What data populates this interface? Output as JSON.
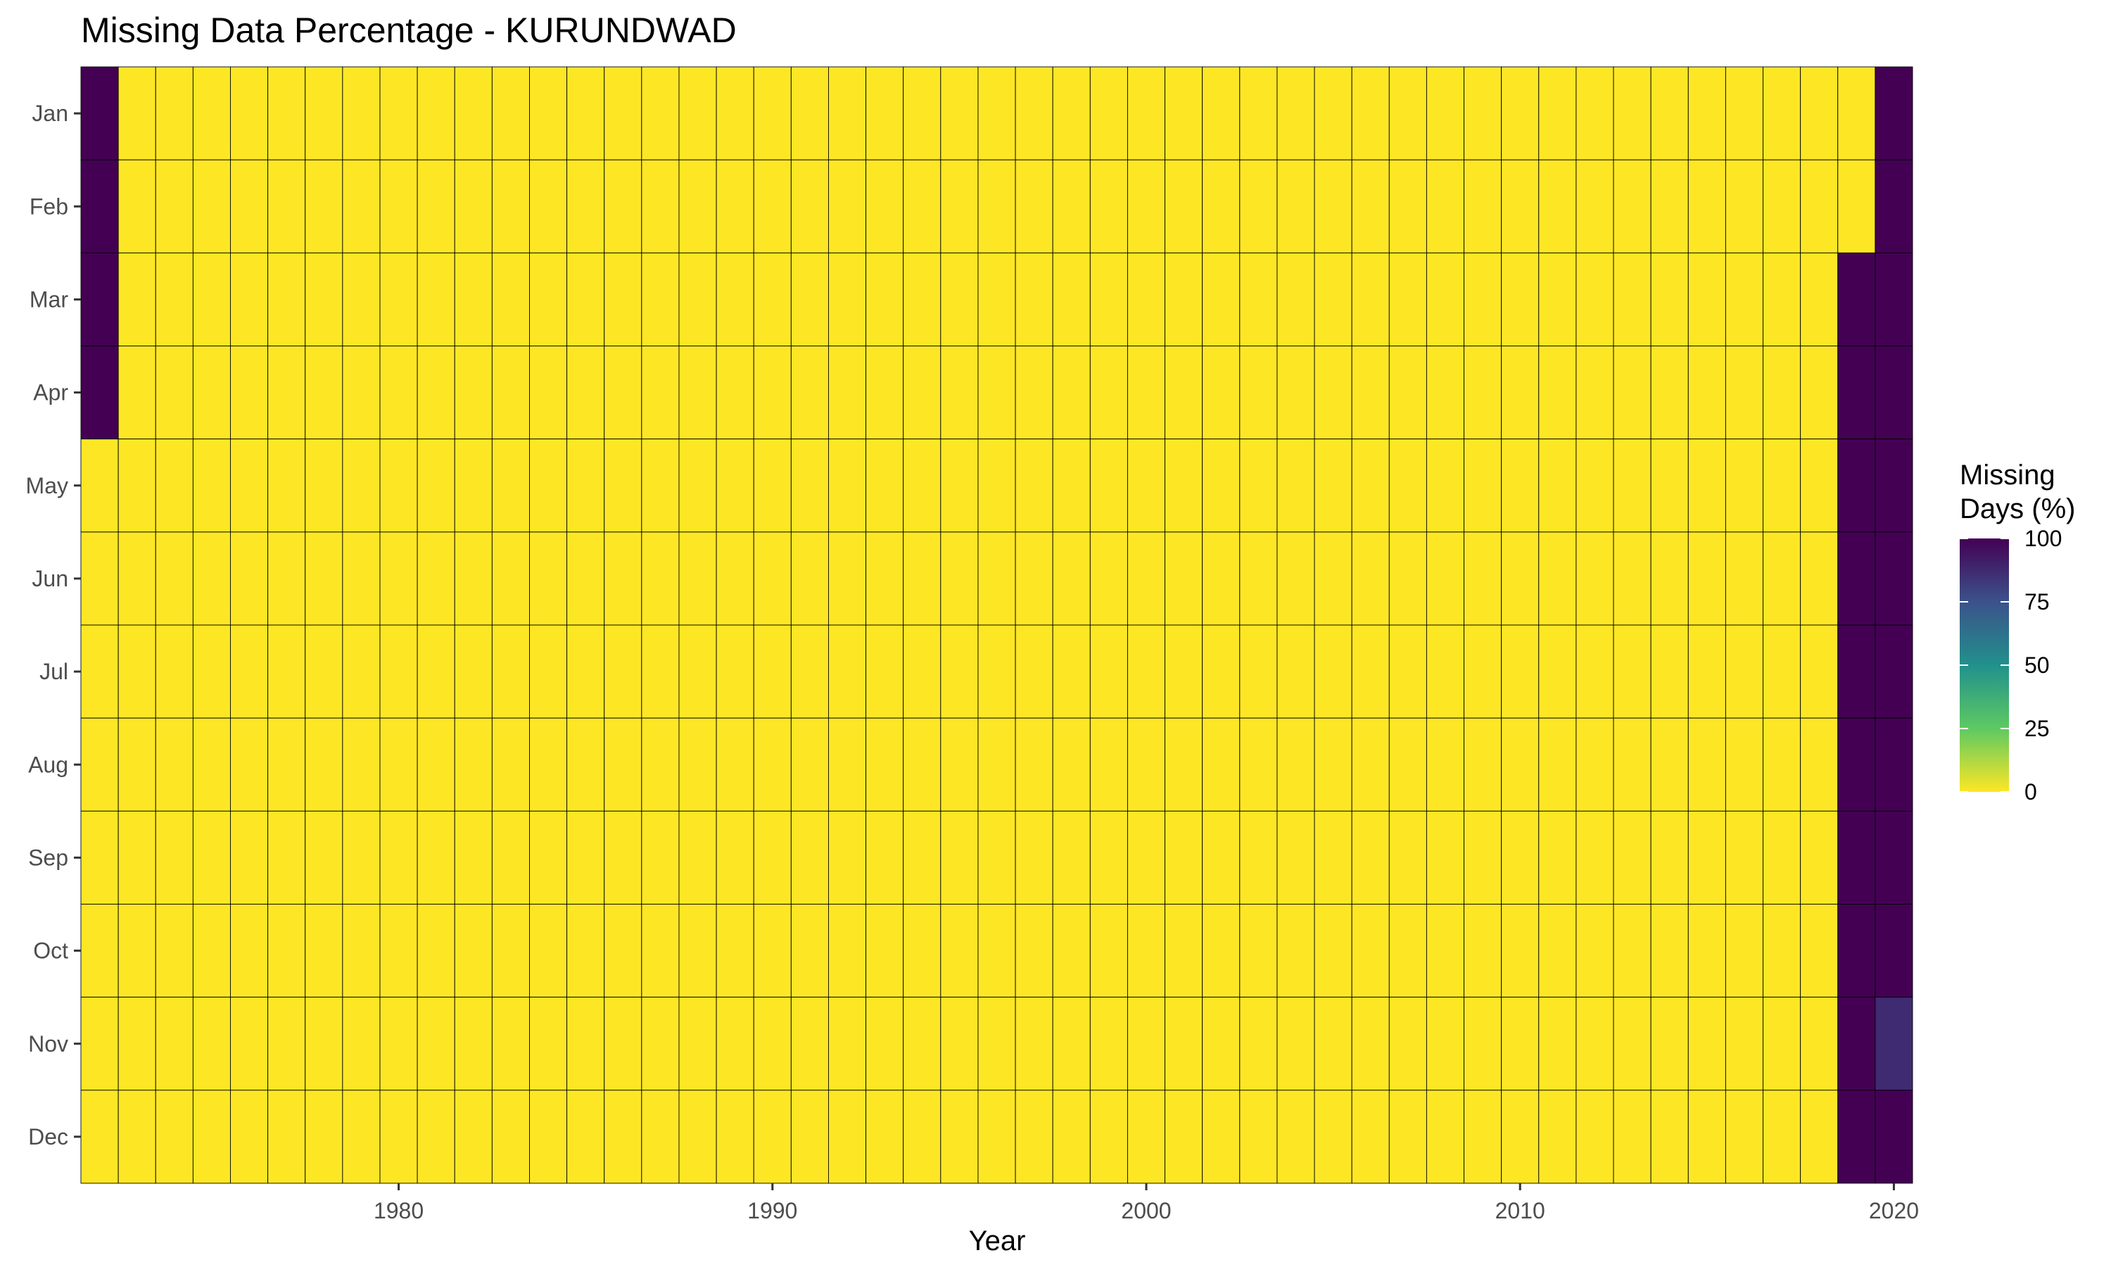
{
  "chart_data": {
    "type": "heatmap",
    "title": "Missing Data Percentage - KURUNDWAD",
    "xlabel": "Year",
    "ylabel": "",
    "x_range": [
      1972,
      2020
    ],
    "x_ticks": [
      1980,
      1990,
      2000,
      2010,
      2020
    ],
    "months": [
      "Jan",
      "Feb",
      "Mar",
      "Apr",
      "May",
      "Jun",
      "Jul",
      "Aug",
      "Sep",
      "Oct",
      "Nov",
      "Dec"
    ],
    "default_value": 0,
    "nonzero_cells": [
      {
        "year": 1972,
        "month": "Jan",
        "value": 100
      },
      {
        "year": 1972,
        "month": "Feb",
        "value": 100
      },
      {
        "year": 1972,
        "month": "Mar",
        "value": 100
      },
      {
        "year": 1972,
        "month": "Apr",
        "value": 100
      },
      {
        "year": 2019,
        "month": "Mar",
        "value": 100
      },
      {
        "year": 2019,
        "month": "Apr",
        "value": 100
      },
      {
        "year": 2019,
        "month": "May",
        "value": 100
      },
      {
        "year": 2019,
        "month": "Jun",
        "value": 100
      },
      {
        "year": 2019,
        "month": "Jul",
        "value": 100
      },
      {
        "year": 2019,
        "month": "Aug",
        "value": 100
      },
      {
        "year": 2019,
        "month": "Sep",
        "value": 100
      },
      {
        "year": 2019,
        "month": "Oct",
        "value": 100
      },
      {
        "year": 2019,
        "month": "Nov",
        "value": 100
      },
      {
        "year": 2019,
        "month": "Dec",
        "value": 100
      },
      {
        "year": 2020,
        "month": "Jan",
        "value": 100
      },
      {
        "year": 2020,
        "month": "Feb",
        "value": 100
      },
      {
        "year": 2020,
        "month": "Mar",
        "value": 100
      },
      {
        "year": 2020,
        "month": "Apr",
        "value": 100
      },
      {
        "year": 2020,
        "month": "May",
        "value": 100
      },
      {
        "year": 2020,
        "month": "Jun",
        "value": 100
      },
      {
        "year": 2020,
        "month": "Jul",
        "value": 100
      },
      {
        "year": 2020,
        "month": "Aug",
        "value": 100
      },
      {
        "year": 2020,
        "month": "Sep",
        "value": 100
      },
      {
        "year": 2020,
        "month": "Oct",
        "value": 100
      },
      {
        "year": 2020,
        "month": "Nov",
        "value": 87
      },
      {
        "year": 2020,
        "month": "Dec",
        "value": 100
      }
    ],
    "legend": {
      "title_line1": "Missing",
      "title_line2": "Days (%)",
      "range": [
        0,
        100
      ],
      "ticks": [
        0,
        25,
        50,
        75,
        100
      ],
      "placement": "right",
      "colormap": "viridis-reversed"
    },
    "colors": {
      "v0": "#fde725",
      "v25": "#5ec962",
      "v50": "#21918c",
      "v75": "#3b528b",
      "v100": "#440154",
      "cell_border": "#000000"
    }
  }
}
